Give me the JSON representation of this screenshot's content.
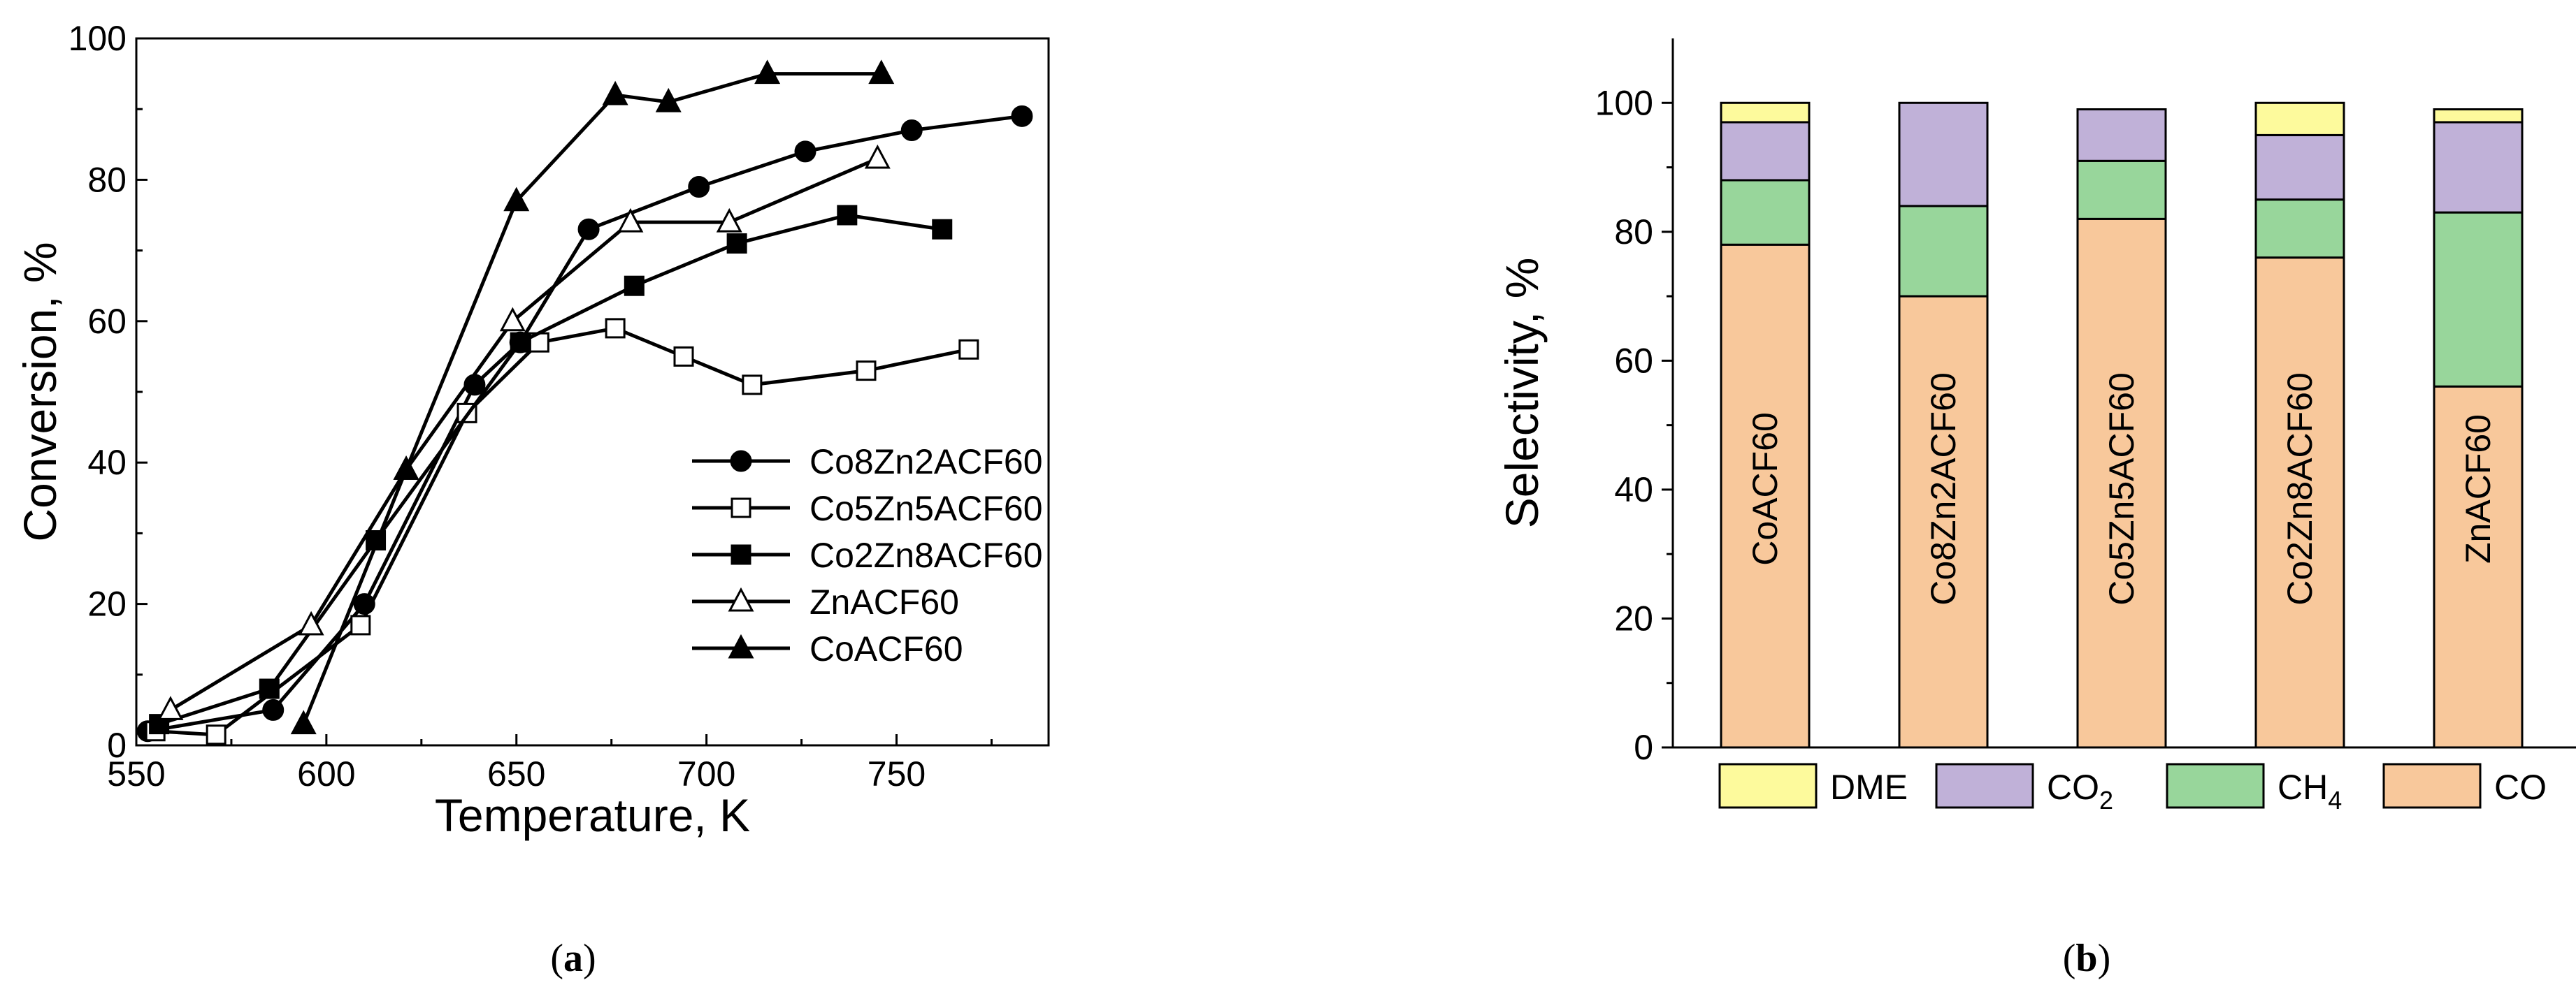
{
  "chart_data": [
    {
      "type": "line",
      "panel_label": "(a)",
      "panel_letter": "a",
      "xlabel": "Temperature, K",
      "ylabel": "Conversion, %",
      "xlim": [
        550,
        790
      ],
      "ylim": [
        0,
        100
      ],
      "xticks": [
        550,
        600,
        650,
        700,
        750
      ],
      "yticks": [
        0,
        20,
        40,
        60,
        80,
        100
      ],
      "legend_position": "center-right",
      "series": [
        {
          "name": "Co8Zn2ACF60",
          "marker": "circle",
          "filled": true,
          "x": [
            553,
            586,
            610,
            639,
            651,
            669,
            698,
            726,
            754,
            783
          ],
          "y": [
            2,
            5,
            20,
            51,
            57,
            73,
            79,
            84,
            87,
            89
          ]
        },
        {
          "name": "Co5Zn5ACF60",
          "marker": "square",
          "filled": false,
          "x": [
            555,
            571,
            609,
            637,
            656,
            676,
            694,
            712,
            742,
            769
          ],
          "y": [
            2,
            1.5,
            17,
            47,
            57,
            59,
            55,
            51,
            53,
            56
          ]
        },
        {
          "name": "Co2Zn8ACF60",
          "marker": "square",
          "filled": true,
          "x": [
            556,
            585,
            613,
            651,
            681,
            708,
            737,
            762
          ],
          "y": [
            3,
            8,
            29,
            57,
            65,
            71,
            75,
            73
          ]
        },
        {
          "name": "ZnACF60",
          "marker": "triangle",
          "filled": false,
          "x": [
            559,
            596,
            621,
            649,
            680,
            706,
            745
          ],
          "y": [
            5,
            17,
            39,
            60,
            74,
            74,
            83
          ]
        },
        {
          "name": "CoACF60",
          "marker": "triangle",
          "filled": true,
          "x": [
            594,
            621,
            650,
            676,
            690,
            716,
            746
          ],
          "y": [
            3,
            39,
            77,
            92,
            91,
            95,
            95
          ]
        }
      ]
    },
    {
      "type": "bar",
      "stacked": true,
      "panel_label": "(b)",
      "panel_letter": "b",
      "ylabel": "Selectivity, %",
      "ylim": [
        0,
        110
      ],
      "yticks": [
        0,
        20,
        40,
        60,
        80,
        100
      ],
      "legend_position": "bottom",
      "categories": [
        "CoACF60",
        "Co8Zn2ACF60",
        "Co5Zn5ACF60",
        "Co2Zn8ACF60",
        "ZnACF60"
      ],
      "series": [
        {
          "name": "CO",
          "label_main": "CO",
          "label_sub": "",
          "color": "#f8c89b",
          "values": [
            78,
            70,
            82,
            76,
            56
          ]
        },
        {
          "name": "CH4",
          "label_main": "CH",
          "label_sub": "4",
          "color": "#98d69b",
          "values": [
            10,
            14,
            9,
            9,
            27
          ]
        },
        {
          "name": "CO2",
          "label_main": "CO",
          "label_sub": "2",
          "color": "#c0b1d8",
          "values": [
            9,
            16,
            8,
            10,
            14
          ]
        },
        {
          "name": "DME",
          "label_main": "DME",
          "label_sub": "",
          "color": "#fdfa9c",
          "values": [
            3,
            0,
            0,
            5,
            2
          ]
        }
      ],
      "legend_order": [
        "DME",
        "CO2",
        "CH4",
        "CO"
      ]
    }
  ]
}
